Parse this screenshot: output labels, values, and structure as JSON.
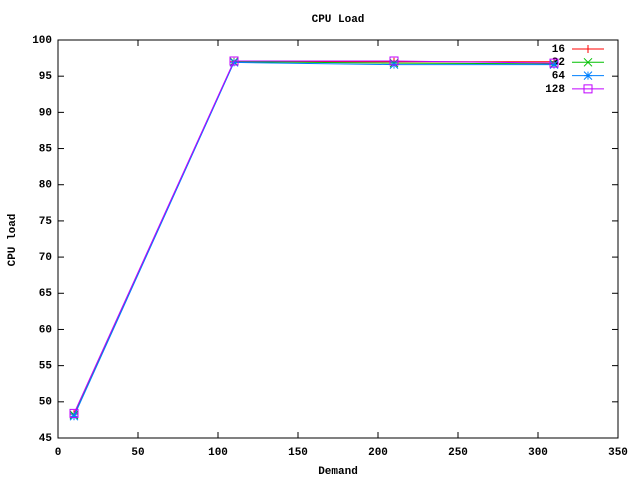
{
  "chart_data": {
    "type": "line",
    "title": "CPU Load",
    "x_label": "Demand",
    "y_label": "CPU load",
    "x": [
      10,
      110,
      210,
      310
    ],
    "series": [
      {
        "name": "16",
        "color": "#ff0000",
        "marker": "plus",
        "values": [
          48.3,
          97,
          97,
          97
        ]
      },
      {
        "name": "32",
        "color": "#00c000",
        "marker": "cross",
        "values": [
          48.2,
          97,
          96.8,
          96.7
        ]
      },
      {
        "name": "64",
        "color": "#0080ff",
        "marker": "star",
        "values": [
          48.0,
          96.9,
          96.6,
          96.6
        ]
      },
      {
        "name": "128",
        "color": "#c000ff",
        "marker": "square",
        "values": [
          48.4,
          97.1,
          97.1,
          96.8
        ]
      }
    ],
    "xlim": [
      0,
      350
    ],
    "xticks": [
      0,
      50,
      100,
      150,
      200,
      250,
      300,
      350
    ],
    "ylim": [
      45,
      100
    ],
    "yticks": [
      45,
      50,
      55,
      60,
      65,
      70,
      75,
      80,
      85,
      90,
      95,
      100
    ],
    "legend": "top-right"
  }
}
